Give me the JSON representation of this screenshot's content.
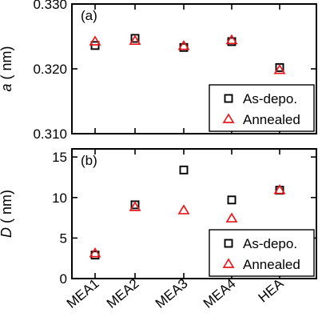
{
  "chart_data": [
    {
      "type": "scatter",
      "panel_label": "(a)",
      "ylabel_symbol": "a",
      "ylabel_unit": " ( nm)",
      "ylim": [
        0.31,
        0.33
      ],
      "yticks": [
        0.31,
        0.32,
        0.33
      ],
      "ytick_labels": [
        "0.310",
        "0.320",
        "0.330"
      ],
      "categories": [
        "MEA1",
        "MEA2",
        "MEA3",
        "MEA4",
        "HEA"
      ],
      "series": [
        {
          "name": "As-depo.",
          "marker": "square",
          "color": "#000000",
          "values": [
            0.3236,
            0.3247,
            0.3233,
            0.3242,
            0.3202
          ]
        },
        {
          "name": "Annealed",
          "marker": "triangle",
          "color": "#e8191c",
          "values": [
            0.3242,
            0.3243,
            0.3235,
            0.3244,
            0.3198
          ]
        }
      ],
      "legend_position": "bottom-right",
      "grid": false
    },
    {
      "type": "scatter",
      "panel_label": "(b)",
      "ylabel_symbol": "D",
      "ylabel_unit": " ( nm)",
      "ylim": [
        0,
        16
      ],
      "yticks": [
        0,
        5,
        10,
        15
      ],
      "ytick_labels": [
        "0",
        "5",
        "10",
        "15"
      ],
      "categories": [
        "MEA1",
        "MEA2",
        "MEA3",
        "MEA4",
        "HEA"
      ],
      "series": [
        {
          "name": "As-depo.",
          "marker": "square",
          "color": "#000000",
          "values": [
            2.9,
            9.1,
            13.4,
            9.7,
            10.9
          ]
        },
        {
          "name": "Annealed",
          "marker": "triangle",
          "color": "#e8191c",
          "values": [
            3.1,
            8.8,
            8.4,
            7.4,
            10.9
          ]
        }
      ],
      "legend_position": "bottom-right",
      "grid": false
    }
  ]
}
